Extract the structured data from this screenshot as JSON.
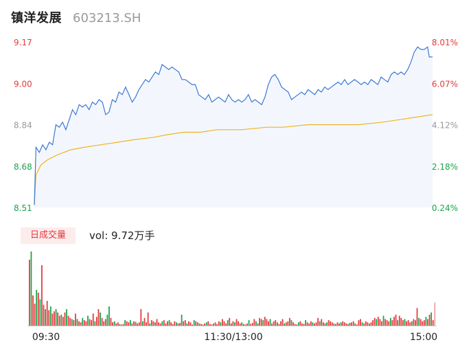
{
  "header": {
    "name": "镇洋发展",
    "code": "603213.SH"
  },
  "volume_panel": {
    "badge": "日成交量",
    "vol_label": "vol: 9.72万手"
  },
  "colors": {
    "up": "#e4393c",
    "down": "#1aa34a",
    "neutral": "#999999",
    "price_line": "#3a78d6",
    "avg_line": "#f0b323",
    "area_fill": "#f3f7fd"
  },
  "chart_data": {
    "type": "line",
    "price_axis_labels": [
      "9.17",
      "9.00",
      "8.84",
      "8.68",
      "8.51"
    ],
    "pct_axis_labels": [
      "8.01%",
      "6.07%",
      "4.12%",
      "2.18%",
      "0.24%"
    ],
    "x_tick_labels": [
      "09:30",
      "11:30/13:00",
      "15:00"
    ],
    "ylim": [
      8.51,
      9.17
    ],
    "x_count": 240,
    "price": [
      [
        0,
        8.52
      ],
      [
        1,
        8.75
      ],
      [
        3,
        8.73
      ],
      [
        5,
        8.76
      ],
      [
        7,
        8.74
      ],
      [
        9,
        8.77
      ],
      [
        11,
        8.76
      ],
      [
        13,
        8.84
      ],
      [
        15,
        8.83
      ],
      [
        17,
        8.85
      ],
      [
        19,
        8.82
      ],
      [
        21,
        8.86
      ],
      [
        23,
        8.9
      ],
      [
        25,
        8.88
      ],
      [
        27,
        8.92
      ],
      [
        29,
        8.91
      ],
      [
        31,
        8.92
      ],
      [
        33,
        8.9
      ],
      [
        35,
        8.93
      ],
      [
        37,
        8.92
      ],
      [
        39,
        8.94
      ],
      [
        41,
        8.93
      ],
      [
        43,
        8.88
      ],
      [
        45,
        8.89
      ],
      [
        47,
        8.94
      ],
      [
        49,
        8.93
      ],
      [
        51,
        8.97
      ],
      [
        53,
        8.96
      ],
      [
        55,
        8.99
      ],
      [
        57,
        8.96
      ],
      [
        59,
        8.93
      ],
      [
        61,
        8.95
      ],
      [
        63,
        8.98
      ],
      [
        65,
        9.0
      ],
      [
        67,
        9.02
      ],
      [
        69,
        9.01
      ],
      [
        71,
        9.03
      ],
      [
        73,
        9.05
      ],
      [
        75,
        9.04
      ],
      [
        77,
        9.08
      ],
      [
        79,
        9.07
      ],
      [
        81,
        9.06
      ],
      [
        83,
        9.07
      ],
      [
        85,
        9.06
      ],
      [
        87,
        9.05
      ],
      [
        89,
        9.02
      ],
      [
        91,
        9.02
      ],
      [
        93,
        9.01
      ],
      [
        95,
        9.0
      ],
      [
        97,
        9.0
      ],
      [
        99,
        8.96
      ],
      [
        101,
        8.95
      ],
      [
        103,
        8.94
      ],
      [
        105,
        8.96
      ],
      [
        107,
        8.93
      ],
      [
        109,
        8.94
      ],
      [
        111,
        8.95
      ],
      [
        113,
        8.94
      ],
      [
        115,
        8.93
      ],
      [
        117,
        8.96
      ],
      [
        119,
        8.94
      ],
      [
        121,
        8.93
      ],
      [
        123,
        8.94
      ],
      [
        125,
        8.93
      ],
      [
        127,
        8.94
      ],
      [
        129,
        8.96
      ],
      [
        131,
        8.93
      ],
      [
        133,
        8.94
      ],
      [
        135,
        8.93
      ],
      [
        137,
        8.92
      ],
      [
        139,
        8.95
      ],
      [
        141,
        9.0
      ],
      [
        143,
        9.03
      ],
      [
        145,
        9.04
      ],
      [
        147,
        9.02
      ],
      [
        149,
        8.99
      ],
      [
        151,
        8.98
      ],
      [
        153,
        8.97
      ],
      [
        155,
        8.94
      ],
      [
        157,
        8.95
      ],
      [
        159,
        8.96
      ],
      [
        161,
        8.97
      ],
      [
        163,
        8.96
      ],
      [
        165,
        8.98
      ],
      [
        167,
        8.97
      ],
      [
        169,
        8.96
      ],
      [
        171,
        8.98
      ],
      [
        173,
        8.97
      ],
      [
        175,
        8.99
      ],
      [
        177,
        8.98
      ],
      [
        179,
        8.99
      ],
      [
        181,
        9.0
      ],
      [
        183,
        9.01
      ],
      [
        185,
        9.0
      ],
      [
        187,
        9.02
      ],
      [
        189,
        9.0
      ],
      [
        191,
        9.01
      ],
      [
        193,
        9.02
      ],
      [
        195,
        9.01
      ],
      [
        197,
        9.0
      ],
      [
        199,
        9.01
      ],
      [
        201,
        9.0
      ],
      [
        203,
        9.02
      ],
      [
        205,
        9.01
      ],
      [
        207,
        9.0
      ],
      [
        209,
        9.03
      ],
      [
        211,
        9.02
      ],
      [
        213,
        9.01
      ],
      [
        215,
        9.04
      ],
      [
        217,
        9.05
      ],
      [
        219,
        9.04
      ],
      [
        221,
        9.05
      ],
      [
        223,
        9.04
      ],
      [
        225,
        9.06
      ],
      [
        227,
        9.09
      ],
      [
        229,
        9.13
      ],
      [
        231,
        9.15
      ],
      [
        233,
        9.14
      ],
      [
        235,
        9.14
      ],
      [
        237,
        9.15
      ],
      [
        238,
        9.11
      ],
      [
        240,
        9.11
      ]
    ],
    "avg": [
      [
        0,
        8.52
      ],
      [
        1,
        8.64
      ],
      [
        4,
        8.68
      ],
      [
        8,
        8.7
      ],
      [
        14,
        8.72
      ],
      [
        22,
        8.74
      ],
      [
        30,
        8.75
      ],
      [
        40,
        8.76
      ],
      [
        50,
        8.77
      ],
      [
        60,
        8.78
      ],
      [
        72,
        8.79
      ],
      [
        80,
        8.8
      ],
      [
        90,
        8.81
      ],
      [
        100,
        8.81
      ],
      [
        110,
        8.82
      ],
      [
        125,
        8.82
      ],
      [
        140,
        8.83
      ],
      [
        150,
        8.83
      ],
      [
        165,
        8.84
      ],
      [
        180,
        8.84
      ],
      [
        195,
        8.84
      ],
      [
        210,
        8.85
      ],
      [
        220,
        8.86
      ],
      [
        230,
        8.87
      ],
      [
        240,
        8.88
      ]
    ],
    "volume": [
      [
        120,
        "up"
      ],
      [
        135,
        "down"
      ],
      [
        55,
        "up"
      ],
      [
        40,
        "up"
      ],
      [
        65,
        "down"
      ],
      [
        60,
        "up"
      ],
      [
        48,
        "down"
      ],
      [
        110,
        "up"
      ],
      [
        38,
        "up"
      ],
      [
        30,
        "down"
      ],
      [
        45,
        "up"
      ],
      [
        28,
        "up"
      ],
      [
        35,
        "down"
      ],
      [
        22,
        "up"
      ],
      [
        26,
        "up"
      ],
      [
        30,
        "down"
      ],
      [
        24,
        "up"
      ],
      [
        18,
        "up"
      ],
      [
        20,
        "down"
      ],
      [
        16,
        "up"
      ],
      [
        24,
        "up"
      ],
      [
        30,
        "down"
      ],
      [
        18,
        "up"
      ],
      [
        14,
        "up"
      ],
      [
        12,
        "down"
      ],
      [
        10,
        "up"
      ],
      [
        22,
        "up"
      ],
      [
        12,
        "down"
      ],
      [
        8,
        "up"
      ],
      [
        6,
        "up"
      ],
      [
        14,
        "down"
      ],
      [
        10,
        "up"
      ],
      [
        8,
        "up"
      ],
      [
        18,
        "down"
      ],
      [
        12,
        "up"
      ],
      [
        10,
        "up"
      ],
      [
        22,
        "up"
      ],
      [
        8,
        "down"
      ],
      [
        16,
        "up"
      ],
      [
        30,
        "up"
      ],
      [
        24,
        "down"
      ],
      [
        14,
        "up"
      ],
      [
        8,
        "up"
      ],
      [
        12,
        "up"
      ],
      [
        20,
        "down"
      ],
      [
        35,
        "down"
      ],
      [
        14,
        "up"
      ],
      [
        6,
        "up"
      ],
      [
        8,
        "down"
      ],
      [
        4,
        "up"
      ],
      [
        6,
        "up"
      ],
      [
        3,
        "down"
      ],
      [
        2,
        "up"
      ],
      [
        3,
        "up"
      ],
      [
        10,
        "down"
      ],
      [
        8,
        "up"
      ],
      [
        6,
        "up"
      ],
      [
        10,
        "down"
      ],
      [
        4,
        "up"
      ],
      [
        8,
        "up"
      ],
      [
        7,
        "down"
      ],
      [
        4,
        "up"
      ],
      [
        6,
        "up"
      ],
      [
        30,
        "up"
      ],
      [
        8,
        "down"
      ],
      [
        14,
        "up"
      ],
      [
        6,
        "up"
      ],
      [
        24,
        "up"
      ],
      [
        4,
        "down"
      ],
      [
        10,
        "up"
      ],
      [
        8,
        "up"
      ],
      [
        6,
        "down"
      ],
      [
        12,
        "up"
      ],
      [
        6,
        "up"
      ],
      [
        4,
        "up"
      ],
      [
        8,
        "down"
      ],
      [
        10,
        "up"
      ],
      [
        4,
        "up"
      ],
      [
        8,
        "up"
      ],
      [
        10,
        "down"
      ],
      [
        6,
        "up"
      ],
      [
        3,
        "up"
      ],
      [
        8,
        "up"
      ],
      [
        6,
        "down"
      ],
      [
        4,
        "up"
      ],
      [
        5,
        "up"
      ],
      [
        20,
        "down"
      ],
      [
        8,
        "up"
      ],
      [
        10,
        "up"
      ],
      [
        4,
        "down"
      ],
      [
        8,
        "up"
      ],
      [
        6,
        "up"
      ],
      [
        2,
        "up"
      ],
      [
        10,
        "down"
      ],
      [
        8,
        "up"
      ],
      [
        6,
        "up"
      ],
      [
        4,
        "down"
      ],
      [
        3,
        "up"
      ],
      [
        2,
        "up"
      ],
      [
        4,
        "up"
      ],
      [
        6,
        "down"
      ],
      [
        8,
        "up"
      ],
      [
        3,
        "up"
      ],
      [
        2,
        "up"
      ],
      [
        4,
        "down"
      ],
      [
        6,
        "up"
      ],
      [
        3,
        "up"
      ],
      [
        8,
        "up"
      ],
      [
        6,
        "down"
      ],
      [
        12,
        "up"
      ],
      [
        8,
        "up"
      ],
      [
        4,
        "up"
      ],
      [
        10,
        "down"
      ],
      [
        14,
        "up"
      ],
      [
        4,
        "up"
      ],
      [
        8,
        "up"
      ],
      [
        6,
        "down"
      ],
      [
        12,
        "up"
      ],
      [
        8,
        "up"
      ],
      [
        4,
        "up"
      ],
      [
        6,
        "down"
      ],
      [
        3,
        "up"
      ],
      [
        2,
        "up"
      ],
      [
        4,
        "up"
      ],
      [
        10,
        "down"
      ],
      [
        3,
        "up"
      ],
      [
        5,
        "up"
      ],
      [
        12,
        "up"
      ],
      [
        8,
        "down"
      ],
      [
        4,
        "up"
      ],
      [
        14,
        "up"
      ],
      [
        12,
        "up"
      ],
      [
        10,
        "down"
      ],
      [
        16,
        "up"
      ],
      [
        12,
        "up"
      ],
      [
        8,
        "up"
      ],
      [
        12,
        "down"
      ],
      [
        4,
        "up"
      ],
      [
        8,
        "up"
      ],
      [
        10,
        "up"
      ],
      [
        6,
        "down"
      ],
      [
        3,
        "up"
      ],
      [
        8,
        "up"
      ],
      [
        12,
        "up"
      ],
      [
        4,
        "down"
      ],
      [
        6,
        "up"
      ],
      [
        8,
        "up"
      ],
      [
        14,
        "up"
      ],
      [
        10,
        "down"
      ],
      [
        6,
        "up"
      ],
      [
        3,
        "up"
      ],
      [
        2,
        "up"
      ],
      [
        6,
        "down"
      ],
      [
        8,
        "up"
      ],
      [
        4,
        "up"
      ],
      [
        3,
        "up"
      ],
      [
        10,
        "down"
      ],
      [
        6,
        "up"
      ],
      [
        4,
        "up"
      ],
      [
        8,
        "up"
      ],
      [
        6,
        "down"
      ],
      [
        4,
        "up"
      ],
      [
        6,
        "up"
      ],
      [
        14,
        "up"
      ],
      [
        8,
        "down"
      ],
      [
        12,
        "up"
      ],
      [
        6,
        "up"
      ],
      [
        4,
        "up"
      ],
      [
        6,
        "down"
      ],
      [
        10,
        "up"
      ],
      [
        8,
        "up"
      ],
      [
        6,
        "up"
      ],
      [
        4,
        "down"
      ],
      [
        3,
        "up"
      ],
      [
        6,
        "up"
      ],
      [
        4,
        "up"
      ],
      [
        6,
        "down"
      ],
      [
        8,
        "up"
      ],
      [
        6,
        "up"
      ],
      [
        4,
        "up"
      ],
      [
        3,
        "down"
      ],
      [
        5,
        "up"
      ],
      [
        6,
        "up"
      ],
      [
        8,
        "up"
      ],
      [
        4,
        "down"
      ],
      [
        2,
        "up"
      ],
      [
        10,
        "up"
      ],
      [
        12,
        "up"
      ],
      [
        6,
        "down"
      ],
      [
        4,
        "up"
      ],
      [
        8,
        "up"
      ],
      [
        6,
        "up"
      ],
      [
        4,
        "down"
      ],
      [
        6,
        "up"
      ],
      [
        10,
        "up"
      ],
      [
        14,
        "up"
      ],
      [
        12,
        "down"
      ],
      [
        16,
        "up"
      ],
      [
        12,
        "up"
      ],
      [
        8,
        "up"
      ],
      [
        18,
        "down"
      ],
      [
        12,
        "up"
      ],
      [
        10,
        "up"
      ],
      [
        8,
        "up"
      ],
      [
        14,
        "down"
      ],
      [
        10,
        "up"
      ],
      [
        16,
        "up"
      ],
      [
        20,
        "up"
      ],
      [
        10,
        "down"
      ],
      [
        18,
        "up"
      ],
      [
        14,
        "up"
      ],
      [
        10,
        "up"
      ],
      [
        12,
        "down"
      ],
      [
        8,
        "up"
      ],
      [
        10,
        "up"
      ],
      [
        6,
        "up"
      ],
      [
        8,
        "down"
      ],
      [
        12,
        "up"
      ],
      [
        10,
        "up"
      ],
      [
        32,
        "up"
      ],
      [
        14,
        "down"
      ],
      [
        12,
        "up"
      ],
      [
        8,
        "up"
      ],
      [
        10,
        "up"
      ],
      [
        16,
        "down"
      ],
      [
        12,
        "up"
      ],
      [
        20,
        "up"
      ],
      [
        24,
        "down"
      ],
      [
        10,
        "up"
      ],
      [
        42,
        "neutral"
      ]
    ]
  }
}
